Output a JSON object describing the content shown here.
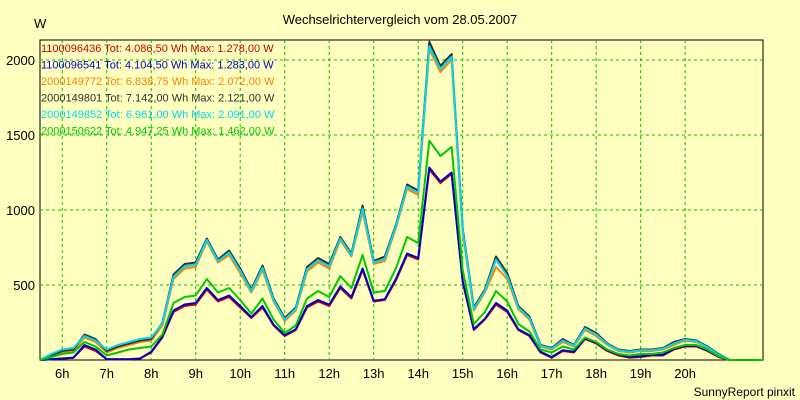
{
  "chart_data": {
    "type": "line",
    "title": "Wechselrichtervergleich vom 28.05.2007",
    "ylabel": "W",
    "xlabel": "",
    "footer": "SunnyReport pinxit",
    "ylim": [
      0,
      2150
    ],
    "yticks": [
      500,
      1000,
      1500,
      2000
    ],
    "xlim": [
      5.5,
      21.75
    ],
    "x_ticks": [
      {
        "x": 6,
        "label": "6h"
      },
      {
        "x": 7,
        "label": "7h"
      },
      {
        "x": 8,
        "label": "8h"
      },
      {
        "x": 9,
        "label": "9h"
      },
      {
        "x": 10,
        "label": "10h"
      },
      {
        "x": 11,
        "label": "11h"
      },
      {
        "x": 12,
        "label": "12h"
      },
      {
        "x": 13,
        "label": "13h"
      },
      {
        "x": 14,
        "label": "14h"
      },
      {
        "x": 15,
        "label": "15h"
      },
      {
        "x": 16,
        "label": "16h"
      },
      {
        "x": 17,
        "label": "17h"
      },
      {
        "x": 18,
        "label": "18h"
      },
      {
        "x": 19,
        "label": "19h"
      },
      {
        "x": 20,
        "label": "20h"
      }
    ],
    "grid": true,
    "legend_position": "top-left",
    "x": [
      5.5,
      5.75,
      6,
      6.25,
      6.5,
      6.75,
      7,
      7.25,
      7.5,
      7.75,
      8,
      8.25,
      8.5,
      8.75,
      9,
      9.25,
      9.5,
      9.75,
      10,
      10.25,
      10.5,
      10.75,
      11,
      11.25,
      11.5,
      11.75,
      12,
      12.25,
      12.5,
      12.75,
      13,
      13.25,
      13.5,
      13.75,
      14,
      14.25,
      14.5,
      14.75,
      15,
      15.25,
      15.5,
      15.75,
      16,
      16.25,
      16.5,
      16.75,
      17,
      17.25,
      17.5,
      17.75,
      18,
      18.25,
      18.5,
      18.75,
      19,
      19.25,
      19.5,
      19.75,
      20,
      20.25,
      20.5,
      20.75,
      21,
      21.25,
      21.5,
      21.75
    ],
    "series": [
      {
        "name": "1100096436 Tot: 4.086,50 Wh Max: 1.278,00 W",
        "color": "#cc0000",
        "values": [
          0,
          5,
          10,
          15,
          90,
          60,
          5,
          5,
          5,
          10,
          50,
          150,
          320,
          360,
          370,
          470,
          390,
          420,
          350,
          280,
          350,
          230,
          160,
          200,
          350,
          390,
          360,
          480,
          410,
          600,
          390,
          400,
          530,
          700,
          670,
          1270,
          1180,
          1240,
          520,
          200,
          270,
          370,
          320,
          200,
          160,
          50,
          15,
          60,
          50,
          140,
          110,
          60,
          30,
          15,
          20,
          30,
          30,
          70,
          90,
          90,
          60,
          20,
          0,
          0,
          0,
          0
        ]
      },
      {
        "name": "1100096541 Tot: 4.104,50 Wh Max: 1.283,00 W",
        "color": "#0000cc",
        "values": [
          0,
          5,
          10,
          15,
          100,
          70,
          5,
          5,
          5,
          10,
          55,
          155,
          330,
          370,
          380,
          480,
          400,
          430,
          360,
          285,
          360,
          235,
          165,
          205,
          360,
          400,
          370,
          490,
          420,
          610,
          395,
          405,
          540,
          710,
          680,
          1283,
          1190,
          1250,
          525,
          205,
          275,
          380,
          330,
          205,
          165,
          55,
          20,
          65,
          55,
          145,
          115,
          65,
          35,
          20,
          25,
          35,
          35,
          75,
          95,
          95,
          65,
          25,
          0,
          0,
          0,
          0
        ]
      },
      {
        "name": "2000149772 Tot: 6.838,75 Wh Max: 2.072,00 W",
        "color": "#ff8000",
        "values": [
          0,
          30,
          50,
          60,
          150,
          120,
          50,
          80,
          100,
          120,
          130,
          230,
          540,
          610,
          620,
          790,
          650,
          700,
          580,
          450,
          600,
          390,
          260,
          330,
          590,
          650,
          610,
          800,
          690,
          990,
          640,
          660,
          880,
          1140,
          1100,
          2072,
          1920,
          2000,
          850,
          330,
          450,
          620,
          540,
          340,
          270,
          90,
          70,
          120,
          90,
          200,
          160,
          100,
          60,
          50,
          60,
          60,
          70,
          100,
          130,
          120,
          80,
          30,
          0,
          0,
          0,
          0
        ]
      },
      {
        "name": "2000149801 Tot: 7.142,00 Wh Max: 2.121,00 W",
        "color": "#303030",
        "values": [
          0,
          30,
          60,
          70,
          170,
          140,
          60,
          90,
          110,
          130,
          140,
          250,
          570,
          640,
          650,
          810,
          670,
          730,
          610,
          470,
          630,
          410,
          280,
          350,
          620,
          680,
          640,
          820,
          710,
          1030,
          660,
          690,
          900,
          1170,
          1130,
          2121,
          1960,
          2040,
          880,
          350,
          470,
          690,
          580,
          360,
          290,
          100,
          80,
          140,
          100,
          220,
          180,
          110,
          70,
          60,
          70,
          70,
          80,
          120,
          140,
          130,
          90,
          40,
          0,
          0,
          0,
          0
        ]
      },
      {
        "name": "2000149852 Tot: 6.961,00 Wh Max: 2.091,00 W",
        "color": "#00d8f0",
        "values": [
          0,
          40,
          70,
          80,
          160,
          130,
          70,
          100,
          120,
          140,
          150,
          245,
          555,
          625,
          635,
          800,
          660,
          715,
          595,
          460,
          615,
          400,
          270,
          340,
          605,
          665,
          625,
          810,
          700,
          1010,
          650,
          675,
          890,
          1155,
          1115,
          2091,
          1940,
          2020,
          865,
          340,
          460,
          670,
          560,
          350,
          280,
          95,
          75,
          130,
          95,
          210,
          170,
          105,
          65,
          55,
          65,
          65,
          75,
          110,
          135,
          125,
          85,
          35,
          0,
          0,
          0,
          0
        ]
      },
      {
        "name": "2000150622 Tot: 4.947,25 Wh Max: 1.462,00 W",
        "color": "#00c800",
        "values": [
          0,
          20,
          40,
          50,
          120,
          90,
          30,
          50,
          70,
          80,
          90,
          170,
          380,
          420,
          430,
          540,
          450,
          480,
          400,
          310,
          410,
          270,
          180,
          230,
          410,
          460,
          420,
          560,
          480,
          700,
          450,
          460,
          610,
          820,
          780,
          1462,
          1360,
          1420,
          600,
          240,
          320,
          460,
          390,
          240,
          190,
          70,
          50,
          90,
          70,
          150,
          120,
          70,
          40,
          30,
          40,
          40,
          50,
          80,
          100,
          100,
          70,
          25,
          0,
          0,
          0,
          0
        ]
      }
    ]
  }
}
